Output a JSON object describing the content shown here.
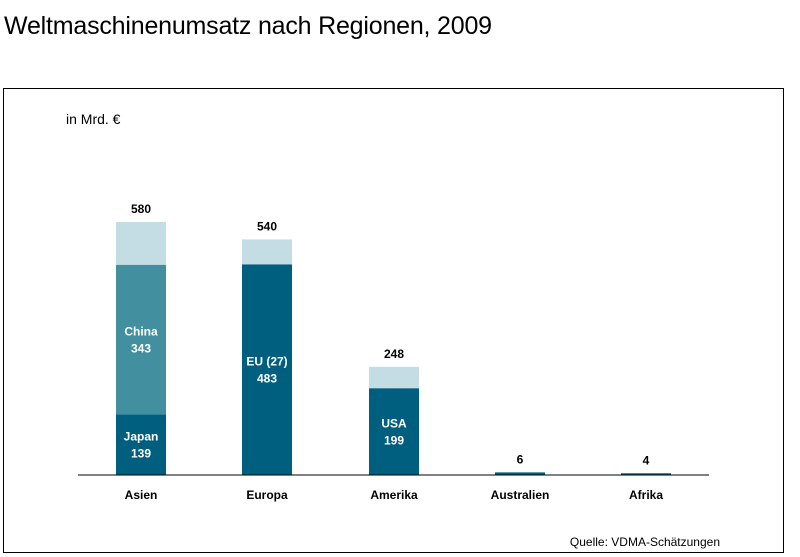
{
  "title": "Weltmaschinenumsatz nach Regionen, 2009",
  "chart_data": {
    "type": "bar",
    "stacked": true,
    "unit_label": "in Mrd. €",
    "source": "Quelle: VDMA-Schätzungen",
    "categories": [
      "Asien",
      "Europa",
      "Amerika",
      "Australien",
      "Afrika"
    ],
    "totals": [
      580,
      540,
      248,
      6,
      4
    ],
    "bars": [
      {
        "category": "Asien",
        "total": 580,
        "segments": [
          {
            "label": "Japan",
            "value": 139,
            "color": "#005f7f"
          },
          {
            "label": "China",
            "value": 343,
            "color": "#418f9f"
          },
          {
            "label": "",
            "value": 98,
            "color": "#c4dde4"
          }
        ]
      },
      {
        "category": "Europa",
        "total": 540,
        "segments": [
          {
            "label": "EU (27)",
            "value": 483,
            "color": "#005f7f"
          },
          {
            "label": "",
            "value": 57,
            "color": "#c4dde4"
          }
        ]
      },
      {
        "category": "Amerika",
        "total": 248,
        "segments": [
          {
            "label": "USA",
            "value": 199,
            "color": "#005f7f"
          },
          {
            "label": "",
            "value": 49,
            "color": "#c4dde4"
          }
        ]
      },
      {
        "category": "Australien",
        "total": 6,
        "segments": [
          {
            "label": "",
            "value": 6,
            "color": "#005f7f"
          }
        ]
      },
      {
        "category": "Afrika",
        "total": 4,
        "segments": [
          {
            "label": "",
            "value": 4,
            "color": "#005f7f"
          }
        ]
      }
    ],
    "ylim": [
      0,
      580
    ]
  }
}
